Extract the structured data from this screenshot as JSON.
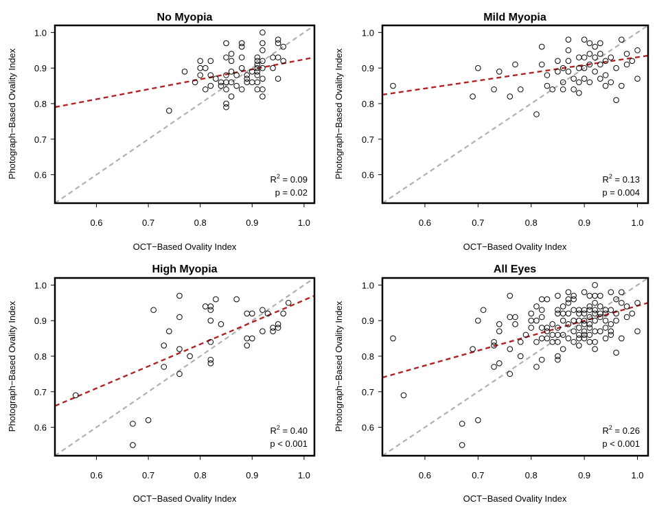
{
  "figure": {
    "panel_count": 4
  },
  "chart_data": [
    {
      "type": "scatter",
      "title": "No Myopia",
      "xlabel": "OCT−Based Ovality Index",
      "ylabel": "Photograph−Based Ovality Index",
      "xlim": [
        0.52,
        1.02
      ],
      "ylim": [
        0.52,
        1.02
      ],
      "xticks": [
        0.6,
        0.7,
        0.8,
        0.9,
        1.0
      ],
      "yticks": [
        0.6,
        0.7,
        0.8,
        0.9,
        1.0
      ],
      "stats": {
        "r2_label": "R",
        "r2_value": " = 0.09",
        "p_text": "p = 0.02"
      },
      "identity_line": {
        "color": "#b0b0b0",
        "from": [
          0.52,
          0.52
        ],
        "to": [
          1.02,
          1.02
        ]
      },
      "fit_line": {
        "color": "#b22222",
        "from": [
          0.52,
          0.79
        ],
        "to": [
          1.02,
          0.93
        ]
      },
      "points": [
        [
          0.74,
          0.78
        ],
        [
          0.77,
          0.89
        ],
        [
          0.79,
          0.86
        ],
        [
          0.8,
          0.92
        ],
        [
          0.8,
          0.9
        ],
        [
          0.8,
          0.88
        ],
        [
          0.81,
          0.84
        ],
        [
          0.81,
          0.9
        ],
        [
          0.82,
          0.92
        ],
        [
          0.82,
          0.88
        ],
        [
          0.82,
          0.85
        ],
        [
          0.83,
          0.87
        ],
        [
          0.84,
          0.85
        ],
        [
          0.84,
          0.86
        ],
        [
          0.85,
          0.97
        ],
        [
          0.85,
          0.93
        ],
        [
          0.85,
          0.88
        ],
        [
          0.85,
          0.86
        ],
        [
          0.85,
          0.84
        ],
        [
          0.85,
          0.8
        ],
        [
          0.85,
          0.79
        ],
        [
          0.86,
          0.94
        ],
        [
          0.86,
          0.92
        ],
        [
          0.86,
          0.89
        ],
        [
          0.86,
          0.86
        ],
        [
          0.86,
          0.82
        ],
        [
          0.87,
          0.88
        ],
        [
          0.87,
          0.85
        ],
        [
          0.88,
          0.97
        ],
        [
          0.88,
          0.96
        ],
        [
          0.88,
          0.93
        ],
        [
          0.88,
          0.9
        ],
        [
          0.88,
          0.84
        ],
        [
          0.89,
          0.88
        ],
        [
          0.89,
          0.86
        ],
        [
          0.89,
          0.87
        ],
        [
          0.9,
          0.89
        ],
        [
          0.9,
          0.86
        ],
        [
          0.91,
          0.93
        ],
        [
          0.91,
          0.92
        ],
        [
          0.91,
          0.91
        ],
        [
          0.91,
          0.9
        ],
        [
          0.91,
          0.89
        ],
        [
          0.91,
          0.88
        ],
        [
          0.91,
          0.86
        ],
        [
          0.91,
          0.84
        ],
        [
          0.92,
          1.0
        ],
        [
          0.92,
          0.97
        ],
        [
          0.92,
          0.95
        ],
        [
          0.92,
          0.92
        ],
        [
          0.92,
          0.9
        ],
        [
          0.92,
          0.87
        ],
        [
          0.92,
          0.84
        ],
        [
          0.92,
          0.82
        ],
        [
          0.94,
          0.93
        ],
        [
          0.94,
          0.9
        ],
        [
          0.95,
          0.98
        ],
        [
          0.95,
          0.97
        ],
        [
          0.95,
          0.93
        ],
        [
          0.95,
          0.87
        ],
        [
          0.96,
          0.96
        ],
        [
          0.96,
          0.92
        ]
      ]
    },
    {
      "type": "scatter",
      "title": "Mild Myopia",
      "xlabel": "OCT−Based Ovality Index",
      "ylabel": "Photograph−Based Ovality Index",
      "xlim": [
        0.52,
        1.02
      ],
      "ylim": [
        0.52,
        1.02
      ],
      "xticks": [
        0.6,
        0.7,
        0.8,
        0.9,
        1.0
      ],
      "yticks": [
        0.6,
        0.7,
        0.8,
        0.9,
        1.0
      ],
      "stats": {
        "r2_label": "R",
        "r2_value": " = 0.13",
        "p_text": "p = 0.004"
      },
      "identity_line": {
        "color": "#b0b0b0",
        "from": [
          0.52,
          0.52
        ],
        "to": [
          1.02,
          1.02
        ]
      },
      "fit_line": {
        "color": "#b22222",
        "from": [
          0.52,
          0.825
        ],
        "to": [
          1.02,
          0.935
        ]
      },
      "points": [
        [
          0.54,
          0.85
        ],
        [
          0.69,
          0.82
        ],
        [
          0.7,
          0.9
        ],
        [
          0.73,
          0.84
        ],
        [
          0.74,
          0.89
        ],
        [
          0.76,
          0.82
        ],
        [
          0.77,
          0.91
        ],
        [
          0.78,
          0.84
        ],
        [
          0.81,
          0.77
        ],
        [
          0.82,
          0.96
        ],
        [
          0.82,
          0.91
        ],
        [
          0.83,
          0.88
        ],
        [
          0.83,
          0.85
        ],
        [
          0.84,
          0.84
        ],
        [
          0.85,
          0.92
        ],
        [
          0.85,
          0.89
        ],
        [
          0.86,
          0.9
        ],
        [
          0.86,
          0.86
        ],
        [
          0.86,
          0.84
        ],
        [
          0.87,
          0.98
        ],
        [
          0.87,
          0.95
        ],
        [
          0.87,
          0.92
        ],
        [
          0.87,
          0.89
        ],
        [
          0.88,
          0.87
        ],
        [
          0.88,
          0.84
        ],
        [
          0.89,
          0.93
        ],
        [
          0.89,
          0.9
        ],
        [
          0.89,
          0.86
        ],
        [
          0.89,
          0.83
        ],
        [
          0.9,
          0.98
        ],
        [
          0.9,
          0.93
        ],
        [
          0.9,
          0.9
        ],
        [
          0.9,
          0.87
        ],
        [
          0.91,
          0.97
        ],
        [
          0.91,
          0.94
        ],
        [
          0.91,
          0.91
        ],
        [
          0.91,
          0.86
        ],
        [
          0.92,
          0.96
        ],
        [
          0.92,
          0.93
        ],
        [
          0.92,
          0.89
        ],
        [
          0.93,
          0.97
        ],
        [
          0.93,
          0.94
        ],
        [
          0.93,
          0.91
        ],
        [
          0.93,
          0.87
        ],
        [
          0.94,
          0.92
        ],
        [
          0.94,
          0.88
        ],
        [
          0.94,
          0.85
        ],
        [
          0.95,
          0.93
        ],
        [
          0.95,
          0.86
        ],
        [
          0.96,
          0.9
        ],
        [
          0.96,
          0.81
        ],
        [
          0.97,
          0.98
        ],
        [
          0.97,
          0.85
        ],
        [
          0.98,
          0.94
        ],
        [
          0.98,
          0.91
        ],
        [
          0.99,
          0.92
        ],
        [
          1.0,
          0.95
        ],
        [
          1.0,
          0.87
        ]
      ]
    },
    {
      "type": "scatter",
      "title": "High Myopia",
      "xlabel": "OCT−Based Ovality Index",
      "ylabel": "Photograph−Based Ovality Index",
      "xlim": [
        0.52,
        1.02
      ],
      "ylim": [
        0.52,
        1.02
      ],
      "xticks": [
        0.6,
        0.7,
        0.8,
        0.9,
        1.0
      ],
      "yticks": [
        0.6,
        0.7,
        0.8,
        0.9,
        1.0
      ],
      "stats": {
        "r2_label": "R",
        "r2_value": " = 0.40",
        "p_text": "p < 0.001"
      },
      "identity_line": {
        "color": "#b0b0b0",
        "from": [
          0.52,
          0.52
        ],
        "to": [
          1.02,
          1.02
        ]
      },
      "fit_line": {
        "color": "#b22222",
        "from": [
          0.52,
          0.66
        ],
        "to": [
          1.02,
          0.97
        ]
      },
      "points": [
        [
          0.56,
          0.69
        ],
        [
          0.67,
          0.61
        ],
        [
          0.67,
          0.55
        ],
        [
          0.7,
          0.62
        ],
        [
          0.71,
          0.93
        ],
        [
          0.73,
          0.77
        ],
        [
          0.73,
          0.83
        ],
        [
          0.74,
          0.87
        ],
        [
          0.76,
          0.97
        ],
        [
          0.76,
          0.91
        ],
        [
          0.76,
          0.82
        ],
        [
          0.76,
          0.75
        ],
        [
          0.78,
          0.8
        ],
        [
          0.81,
          0.94
        ],
        [
          0.82,
          0.94
        ],
        [
          0.82,
          0.93
        ],
        [
          0.82,
          0.9
        ],
        [
          0.82,
          0.84
        ],
        [
          0.82,
          0.79
        ],
        [
          0.82,
          0.78
        ],
        [
          0.83,
          0.96
        ],
        [
          0.84,
          0.89
        ],
        [
          0.87,
          0.96
        ],
        [
          0.89,
          0.92
        ],
        [
          0.89,
          0.85
        ],
        [
          0.89,
          0.83
        ],
        [
          0.9,
          0.92
        ],
        [
          0.9,
          0.85
        ],
        [
          0.92,
          0.93
        ],
        [
          0.92,
          0.87
        ],
        [
          0.93,
          0.92
        ],
        [
          0.94,
          0.88
        ],
        [
          0.94,
          0.87
        ],
        [
          0.95,
          0.89
        ],
        [
          0.95,
          0.88
        ],
        [
          0.96,
          0.92
        ],
        [
          0.97,
          0.95
        ]
      ]
    },
    {
      "type": "scatter",
      "title": "All Eyes",
      "xlabel": "OCT−Based Ovality Index",
      "ylabel": "Photograph−Based Ovality Index",
      "xlim": [
        0.52,
        1.02
      ],
      "ylim": [
        0.52,
        1.02
      ],
      "xticks": [
        0.6,
        0.7,
        0.8,
        0.9,
        1.0
      ],
      "yticks": [
        0.6,
        0.7,
        0.8,
        0.9,
        1.0
      ],
      "stats": {
        "r2_label": "R",
        "r2_value": " = 0.26",
        "p_text": "p < 0.001"
      },
      "identity_line": {
        "color": "#b0b0b0",
        "from": [
          0.52,
          0.52
        ],
        "to": [
          1.02,
          1.02
        ]
      },
      "fit_line": {
        "color": "#b22222",
        "from": [
          0.52,
          0.74
        ],
        "to": [
          1.02,
          0.95
        ]
      },
      "points": [
        [
          0.54,
          0.85
        ],
        [
          0.56,
          0.69
        ],
        [
          0.67,
          0.61
        ],
        [
          0.67,
          0.55
        ],
        [
          0.69,
          0.82
        ],
        [
          0.7,
          0.9
        ],
        [
          0.7,
          0.62
        ],
        [
          0.71,
          0.93
        ],
        [
          0.73,
          0.84
        ],
        [
          0.73,
          0.83
        ],
        [
          0.73,
          0.77
        ],
        [
          0.74,
          0.89
        ],
        [
          0.74,
          0.87
        ],
        [
          0.74,
          0.78
        ],
        [
          0.76,
          0.97
        ],
        [
          0.76,
          0.91
        ],
        [
          0.76,
          0.82
        ],
        [
          0.76,
          0.75
        ],
        [
          0.77,
          0.91
        ],
        [
          0.77,
          0.89
        ],
        [
          0.78,
          0.84
        ],
        [
          0.78,
          0.8
        ],
        [
          0.79,
          0.86
        ],
        [
          0.8,
          0.92
        ],
        [
          0.8,
          0.9
        ],
        [
          0.8,
          0.88
        ],
        [
          0.81,
          0.94
        ],
        [
          0.81,
          0.9
        ],
        [
          0.81,
          0.84
        ],
        [
          0.81,
          0.77
        ],
        [
          0.82,
          0.96
        ],
        [
          0.82,
          0.93
        ],
        [
          0.82,
          0.91
        ],
        [
          0.82,
          0.88
        ],
        [
          0.82,
          0.85
        ],
        [
          0.82,
          0.79
        ],
        [
          0.83,
          0.96
        ],
        [
          0.83,
          0.88
        ],
        [
          0.83,
          0.87
        ],
        [
          0.83,
          0.85
        ],
        [
          0.84,
          0.89
        ],
        [
          0.84,
          0.86
        ],
        [
          0.84,
          0.84
        ],
        [
          0.85,
          0.97
        ],
        [
          0.85,
          0.93
        ],
        [
          0.85,
          0.92
        ],
        [
          0.85,
          0.88
        ],
        [
          0.85,
          0.86
        ],
        [
          0.85,
          0.84
        ],
        [
          0.85,
          0.8
        ],
        [
          0.85,
          0.79
        ],
        [
          0.86,
          0.94
        ],
        [
          0.86,
          0.92
        ],
        [
          0.86,
          0.9
        ],
        [
          0.86,
          0.86
        ],
        [
          0.86,
          0.82
        ],
        [
          0.87,
          0.98
        ],
        [
          0.87,
          0.96
        ],
        [
          0.87,
          0.95
        ],
        [
          0.87,
          0.92
        ],
        [
          0.87,
          0.89
        ],
        [
          0.87,
          0.85
        ],
        [
          0.88,
          0.97
        ],
        [
          0.88,
          0.96
        ],
        [
          0.88,
          0.93
        ],
        [
          0.88,
          0.9
        ],
        [
          0.88,
          0.87
        ],
        [
          0.88,
          0.84
        ],
        [
          0.89,
          0.93
        ],
        [
          0.89,
          0.92
        ],
        [
          0.89,
          0.9
        ],
        [
          0.89,
          0.88
        ],
        [
          0.89,
          0.86
        ],
        [
          0.89,
          0.85
        ],
        [
          0.89,
          0.83
        ],
        [
          0.9,
          0.98
        ],
        [
          0.9,
          0.93
        ],
        [
          0.9,
          0.92
        ],
        [
          0.9,
          0.9
        ],
        [
          0.9,
          0.89
        ],
        [
          0.9,
          0.87
        ],
        [
          0.9,
          0.86
        ],
        [
          0.9,
          0.85
        ],
        [
          0.91,
          0.97
        ],
        [
          0.91,
          0.94
        ],
        [
          0.91,
          0.93
        ],
        [
          0.91,
          0.91
        ],
        [
          0.91,
          0.89
        ],
        [
          0.91,
          0.88
        ],
        [
          0.91,
          0.86
        ],
        [
          0.91,
          0.84
        ],
        [
          0.92,
          1.0
        ],
        [
          0.92,
          0.97
        ],
        [
          0.92,
          0.95
        ],
        [
          0.92,
          0.93
        ],
        [
          0.92,
          0.92
        ],
        [
          0.92,
          0.9
        ],
        [
          0.92,
          0.87
        ],
        [
          0.92,
          0.84
        ],
        [
          0.92,
          0.82
        ],
        [
          0.93,
          0.97
        ],
        [
          0.93,
          0.94
        ],
        [
          0.93,
          0.92
        ],
        [
          0.93,
          0.91
        ],
        [
          0.93,
          0.87
        ],
        [
          0.94,
          0.93
        ],
        [
          0.94,
          0.92
        ],
        [
          0.94,
          0.9
        ],
        [
          0.94,
          0.88
        ],
        [
          0.94,
          0.85
        ],
        [
          0.95,
          0.98
        ],
        [
          0.95,
          0.93
        ],
        [
          0.95,
          0.89
        ],
        [
          0.95,
          0.87
        ],
        [
          0.95,
          0.86
        ],
        [
          0.96,
          0.96
        ],
        [
          0.96,
          0.92
        ],
        [
          0.96,
          0.9
        ],
        [
          0.96,
          0.81
        ],
        [
          0.97,
          0.98
        ],
        [
          0.97,
          0.95
        ],
        [
          0.97,
          0.85
        ],
        [
          0.98,
          0.94
        ],
        [
          0.98,
          0.91
        ],
        [
          0.99,
          0.92
        ],
        [
          1.0,
          0.95
        ],
        [
          1.0,
          0.87
        ]
      ]
    }
  ]
}
